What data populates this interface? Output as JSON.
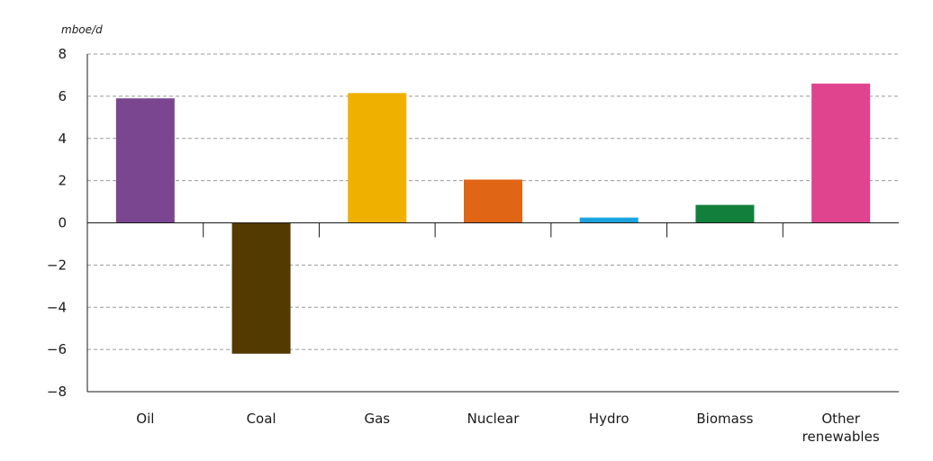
{
  "chart_data": {
    "type": "bar",
    "ylabel": "mboe/d",
    "ylim": [
      -8,
      8
    ],
    "yticks": [
      8,
      6,
      4,
      2,
      0,
      -2,
      -4,
      -6,
      -8
    ],
    "ytick_labels": [
      "8",
      "6",
      "4",
      "2",
      "0",
      "−2",
      "−4",
      "−6",
      "−8"
    ],
    "grid": true,
    "categories": [
      {
        "label": "Oil",
        "lines": [
          "Oil"
        ],
        "value": 5.9,
        "color": "#7b4690"
      },
      {
        "label": "Coal",
        "lines": [
          "Coal"
        ],
        "value": -6.2,
        "color": "#523a00"
      },
      {
        "label": "Gas",
        "lines": [
          "Gas"
        ],
        "value": 6.15,
        "color": "#f0b000"
      },
      {
        "label": "Nuclear",
        "lines": [
          "Nuclear"
        ],
        "value": 2.05,
        "color": "#e06615"
      },
      {
        "label": "Hydro",
        "lines": [
          "Hydro"
        ],
        "value": 0.25,
        "color": "#1aa3e0"
      },
      {
        "label": "Biomass",
        "lines": [
          "Biomass"
        ],
        "value": 0.85,
        "color": "#12803c"
      },
      {
        "label": "Other renewables",
        "lines": [
          "Other",
          "renewables"
        ],
        "value": 6.6,
        "color": "#e0448f"
      }
    ]
  }
}
